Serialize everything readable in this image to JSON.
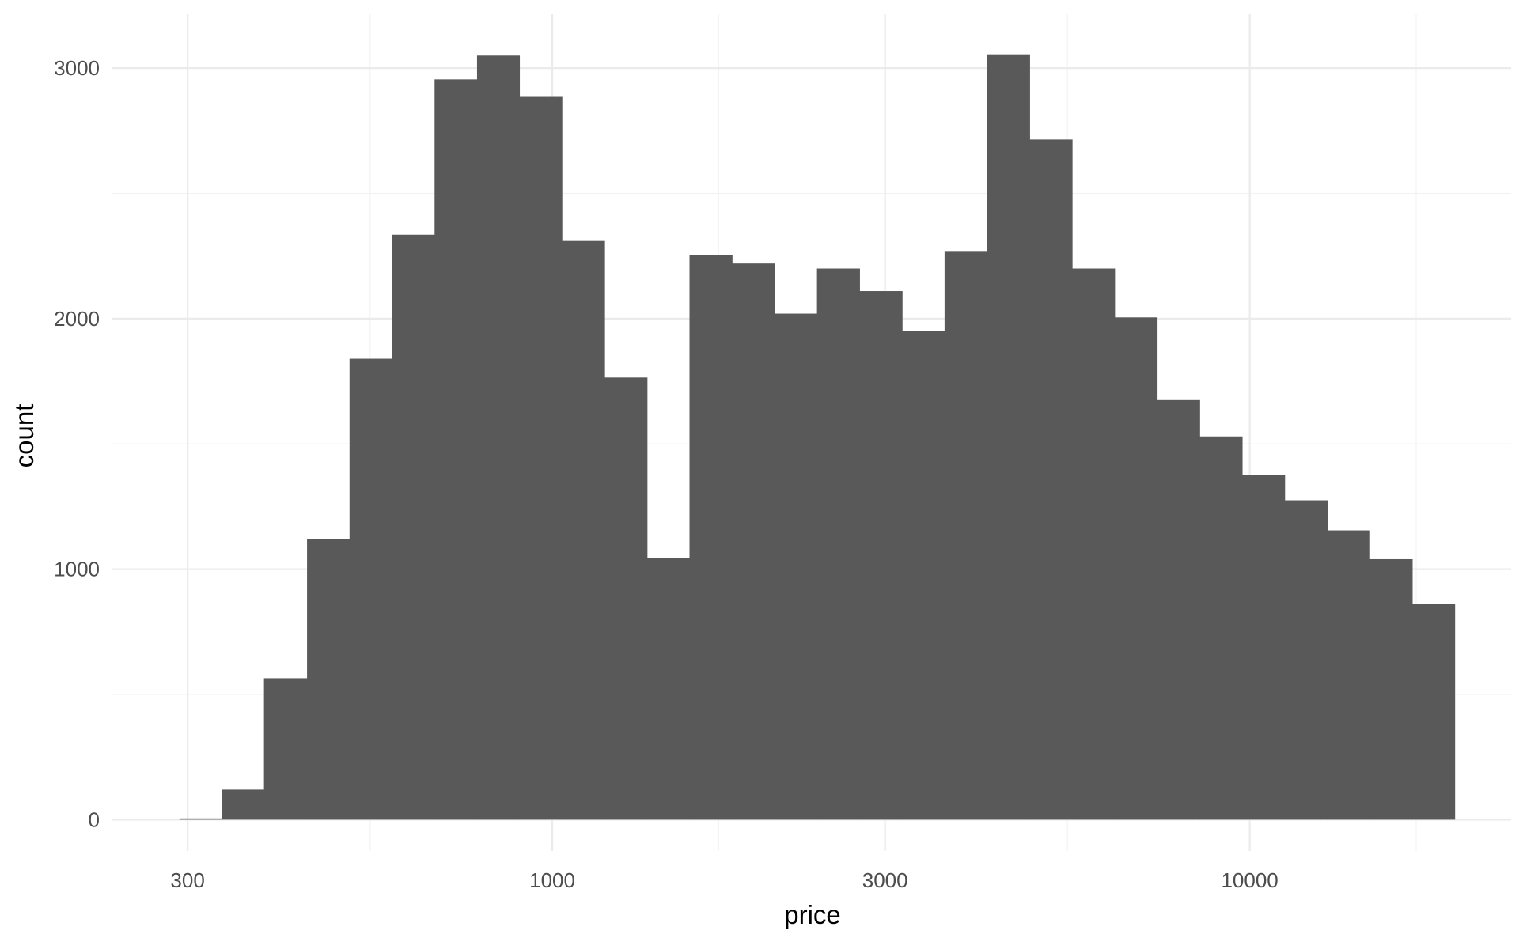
{
  "chart_data": {
    "type": "bar",
    "subtype": "histogram",
    "xlabel": "price",
    "ylabel": "count",
    "x_scale": "log10",
    "xlim": [
      234,
      23700
    ],
    "ylim": [
      -125,
      3215
    ],
    "grid": true,
    "legend": "none",
    "bar_color": "#595959",
    "x_ticks": [
      {
        "value": 300,
        "label": "300"
      },
      {
        "value": 1000,
        "label": "1000"
      },
      {
        "value": 3000,
        "label": "3000"
      },
      {
        "value": 10000,
        "label": "10000"
      }
    ],
    "x_minor_ticks": [
      548,
      1732,
      5477,
      17321
    ],
    "y_ticks": [
      {
        "value": 0,
        "label": "0"
      },
      {
        "value": 1000,
        "label": "1000"
      },
      {
        "value": 2000,
        "label": "2000"
      },
      {
        "value": 3000,
        "label": "3000"
      }
    ],
    "y_minor_ticks": [
      500,
      1500,
      2500
    ],
    "bins": [
      {
        "x0": 292,
        "x1": 336,
        "count": 5
      },
      {
        "x0": 336,
        "x1": 386,
        "count": 120
      },
      {
        "x0": 386,
        "x1": 445,
        "count": 565
      },
      {
        "x0": 445,
        "x1": 512,
        "count": 1120
      },
      {
        "x0": 512,
        "x1": 589,
        "count": 1840
      },
      {
        "x0": 589,
        "x1": 678,
        "count": 2335
      },
      {
        "x0": 678,
        "x1": 780,
        "count": 2955
      },
      {
        "x0": 780,
        "x1": 897,
        "count": 3050
      },
      {
        "x0": 897,
        "x1": 1032,
        "count": 2885
      },
      {
        "x0": 1032,
        "x1": 1188,
        "count": 2310
      },
      {
        "x0": 1188,
        "x1": 1367,
        "count": 1765
      },
      {
        "x0": 1367,
        "x1": 1573,
        "count": 1045
      },
      {
        "x0": 1573,
        "x1": 1810,
        "count": 2255
      },
      {
        "x0": 1810,
        "x1": 2083,
        "count": 2220
      },
      {
        "x0": 2083,
        "x1": 2396,
        "count": 2020
      },
      {
        "x0": 2396,
        "x1": 2757,
        "count": 2200
      },
      {
        "x0": 2757,
        "x1": 3173,
        "count": 2110
      },
      {
        "x0": 3173,
        "x1": 3651,
        "count": 1950
      },
      {
        "x0": 3651,
        "x1": 4201,
        "count": 2270
      },
      {
        "x0": 4201,
        "x1": 4834,
        "count": 3055
      },
      {
        "x0": 4834,
        "x1": 5562,
        "count": 2715
      },
      {
        "x0": 5562,
        "x1": 6400,
        "count": 2200
      },
      {
        "x0": 6400,
        "x1": 7364,
        "count": 2005
      },
      {
        "x0": 7364,
        "x1": 8474,
        "count": 1675
      },
      {
        "x0": 8474,
        "x1": 9750,
        "count": 1530
      },
      {
        "x0": 9750,
        "x1": 11219,
        "count": 1375
      },
      {
        "x0": 11219,
        "x1": 12910,
        "count": 1275
      },
      {
        "x0": 12910,
        "x1": 14855,
        "count": 1155
      },
      {
        "x0": 14855,
        "x1": 17093,
        "count": 1040
      },
      {
        "x0": 17093,
        "x1": 19668,
        "count": 860
      }
    ]
  }
}
